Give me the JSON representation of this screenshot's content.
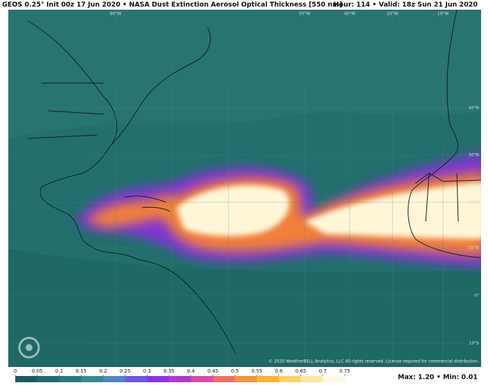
{
  "header": {
    "left": "GEOS 0.25° Init 00z 17 Jun 2020 • NASA Dust Extinction Aerosol Optical Thickness [550 nm]",
    "right": "Hour: 114 • Valid: 18z Sun 21 Jun 2020"
  },
  "longitude_labels": [
    "80°W",
    "50°W",
    "40°W",
    "20°W",
    "10°W"
  ],
  "latitude_labels": [
    "40°N",
    "30°N",
    "20°N",
    "10°N",
    "0°",
    "10°S"
  ],
  "copyright": "© 2020 WeatherBELL Analytics, LLC All rights reserved. License required for commercial distribution.",
  "colorbar": {
    "ticks": [
      0,
      0.05,
      0.1,
      0.15,
      0.2,
      0.25,
      0.3,
      0.35,
      0.4,
      0.45,
      0.5,
      0.55,
      0.6,
      0.65,
      0.7,
      0.75
    ],
    "colors": [
      "#1b5a5c",
      "#236a6a",
      "#2c7a78",
      "#3a8a8a",
      "#4f86c6",
      "#6a5ad8",
      "#8a34e0",
      "#b038d0",
      "#d24ea4",
      "#e6716a",
      "#f29444",
      "#f8b536",
      "#fbd068",
      "#fde6a6",
      "#fff8e6"
    ]
  },
  "stats": "Max: 1.20 • Min: 0.01"
}
